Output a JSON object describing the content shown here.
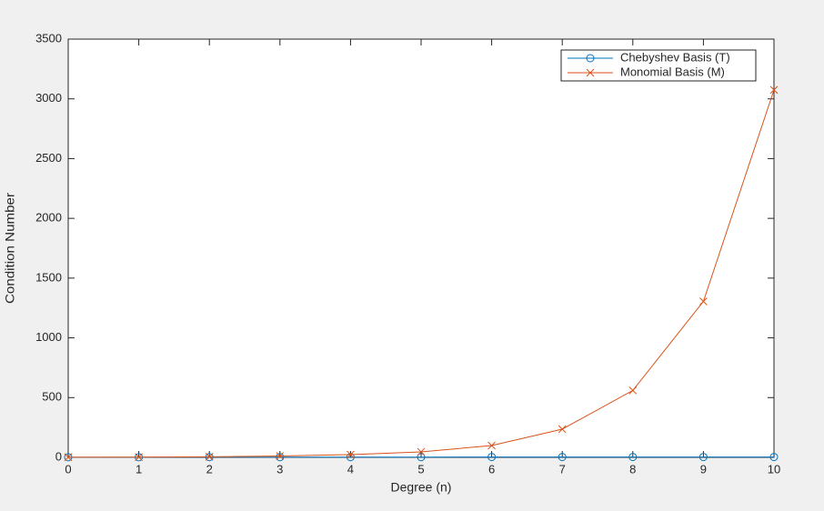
{
  "chart_data": {
    "type": "line",
    "x_label": "Degree (n)",
    "y_label": "Condition Number",
    "x": [
      0,
      1,
      2,
      3,
      4,
      5,
      6,
      7,
      8,
      9,
      10
    ],
    "series": [
      {
        "name": "Chebyshev Basis (T)",
        "color": "#0072bd",
        "marker": "o",
        "values": [
          1,
          1,
          2,
          2,
          2,
          2,
          3,
          3,
          3,
          3,
          3
        ]
      },
      {
        "name": "Monomial Basis (M)",
        "color": "#d95319",
        "marker": "x",
        "values": [
          1,
          2,
          5,
          11,
          23,
          46,
          99,
          236,
          560,
          1305,
          3075
        ]
      }
    ],
    "xlim": [
      0,
      10
    ],
    "xticks": [
      0,
      1,
      2,
      3,
      4,
      5,
      6,
      7,
      8,
      9,
      10
    ],
    "ylim": [
      0,
      3500
    ],
    "yticks": [
      0,
      500,
      1000,
      1500,
      2000,
      2500,
      3000,
      3500
    ],
    "grid": false,
    "legend": "northeast"
  }
}
